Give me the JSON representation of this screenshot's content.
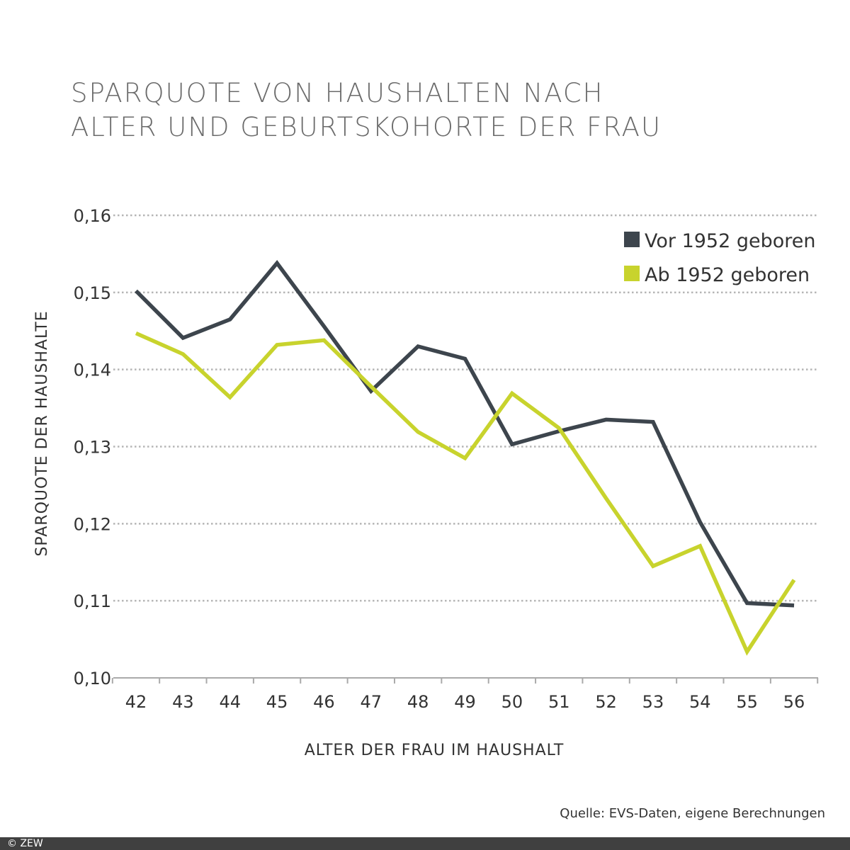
{
  "chart_data": {
    "type": "line",
    "title": [
      "SPARQUOTE VON HAUSHALTEN NACH",
      "ALTER UND GEBURTSKOHORTE DER FRAU"
    ],
    "xlabel": "ALTER DER FRAU IM HAUSHALT",
    "ylabel": "SPARQUOTE DER HAUSHALTE",
    "x": [
      42,
      43,
      44,
      45,
      46,
      47,
      48,
      49,
      50,
      51,
      52,
      53,
      54,
      55,
      56
    ],
    "x_tick_labels": [
      "42",
      "43",
      "44",
      "45",
      "46",
      "47",
      "48",
      "49",
      "50",
      "51",
      "52",
      "53",
      "54",
      "55",
      "56"
    ],
    "y_tick_labels": [
      "0,10",
      "0,11",
      "0,12",
      "0,13",
      "0,14",
      "0,15",
      "0,16"
    ],
    "y_ticks": [
      0.1,
      0.11,
      0.12,
      0.13,
      0.14,
      0.15,
      0.16
    ],
    "ylim": [
      0.1,
      0.16
    ],
    "grid": "horizontal dotted",
    "legend_position": "top-right",
    "series": [
      {
        "name": "Vor 1952 geboren",
        "color": "#3d454d",
        "values": [
          0.1502,
          0.1441,
          0.1465,
          0.1538,
          0.1456,
          0.1372,
          0.143,
          0.1414,
          0.1303,
          0.132,
          0.1335,
          0.1332,
          0.1202,
          0.1097,
          0.1094
        ]
      },
      {
        "name": "Ab 1952 geboren",
        "color": "#c8d32d",
        "values": [
          0.1447,
          0.142,
          0.1364,
          0.1432,
          0.1438,
          0.1378,
          0.1319,
          0.1285,
          0.1369,
          0.1324,
          0.1233,
          0.1145,
          0.1171,
          0.1034,
          0.1127
        ]
      }
    ]
  },
  "source": "Quelle: EVS-Daten, eigene Berechnungen",
  "copyright": "© ZEW"
}
